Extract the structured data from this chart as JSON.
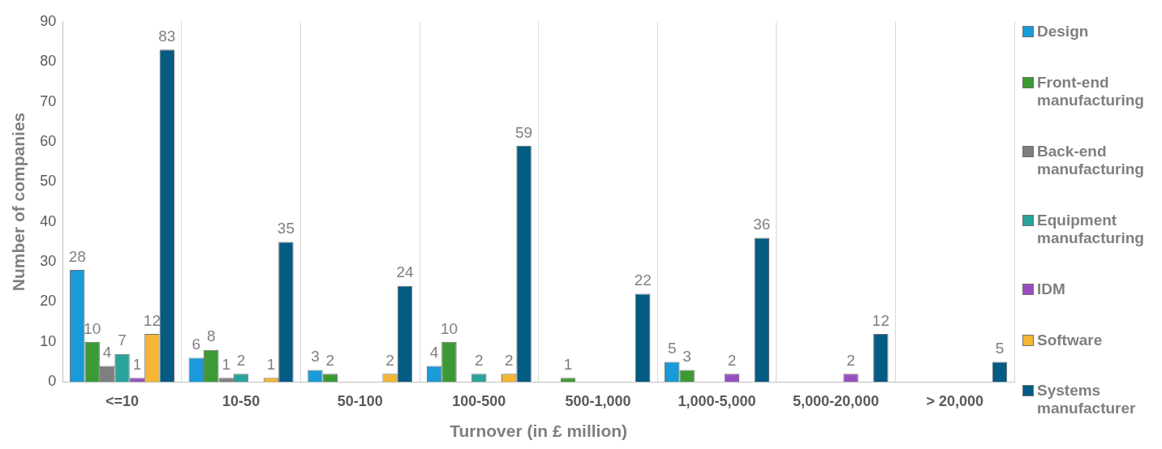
{
  "chart_data": {
    "type": "bar",
    "xlabel": "Turnover (in £ million)",
    "ylabel": "Number of companies",
    "categories": [
      "<=10",
      "10-50",
      "50-100",
      "100-500",
      "500-1,000",
      "1,000-5,000",
      "5,000-20,000",
      "> 20,000"
    ],
    "series": [
      {
        "name": "Design",
        "color": "#1a9ad8",
        "values": [
          28,
          6,
          3,
          4,
          null,
          5,
          null,
          null
        ]
      },
      {
        "name": "Front-end manufacturing",
        "color": "#3b9a34",
        "values": [
          10,
          8,
          2,
          10,
          1,
          3,
          null,
          null
        ]
      },
      {
        "name": "Back-end manufacturing",
        "color": "#7f7f7f",
        "values": [
          4,
          1,
          null,
          null,
          null,
          null,
          null,
          null
        ]
      },
      {
        "name": "Equipment manufacturing",
        "color": "#2aa39a",
        "values": [
          7,
          2,
          null,
          2,
          null,
          null,
          null,
          null
        ]
      },
      {
        "name": "IDM",
        "color": "#9a4fc1",
        "values": [
          1,
          null,
          null,
          null,
          null,
          2,
          2,
          null
        ]
      },
      {
        "name": "Software",
        "color": "#f4b634",
        "values": [
          12,
          1,
          2,
          2,
          null,
          null,
          null,
          null
        ]
      },
      {
        "name": "Systems manufacturer",
        "color": "#045b84",
        "values": [
          83,
          35,
          24,
          59,
          22,
          36,
          12,
          5
        ]
      }
    ],
    "ylim": [
      0,
      90
    ],
    "yticks": [
      0,
      10,
      20,
      30,
      40,
      50,
      60,
      70,
      80,
      90
    ],
    "grid": "x",
    "legend": "right",
    "data_labels": true
  }
}
